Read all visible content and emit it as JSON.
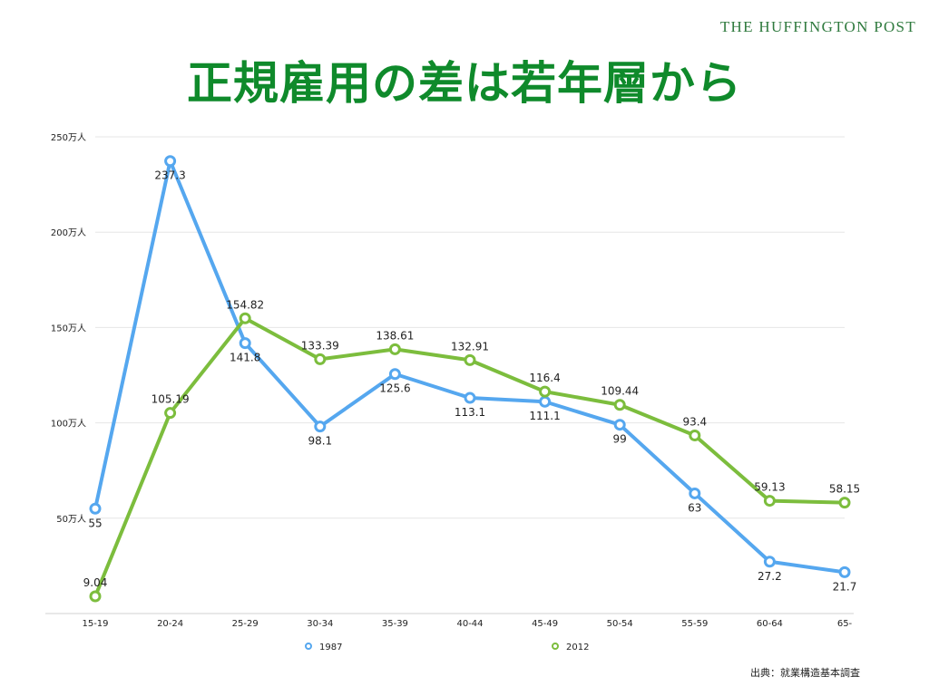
{
  "brand": "THE HUFFINGTON POST",
  "title": "正規雇用の差は若年層から",
  "source": "出典：就業構造基本調査",
  "colors": {
    "s1987": "#55a7ef",
    "s2012": "#7cbd3d",
    "grid": "#e6e6e6",
    "title": "#0f8a2b"
  },
  "chart_data": {
    "type": "line",
    "categories": [
      "15-19",
      "20-24",
      "25-29",
      "30-34",
      "35-39",
      "40-44",
      "45-49",
      "50-54",
      "55-59",
      "60-64",
      "65-"
    ],
    "ylim": [
      0,
      250
    ],
    "yticks": [
      {
        "value": 50,
        "label": "50万人"
      },
      {
        "value": 100,
        "label": "100万人"
      },
      {
        "value": 150,
        "label": "150万人"
      },
      {
        "value": 200,
        "label": "200万人"
      },
      {
        "value": 250,
        "label": "250万人"
      }
    ],
    "legend_position": "bottom",
    "series": [
      {
        "name": "1987",
        "values": [
          55,
          237.3,
          141.8,
          98.1,
          125.6,
          113.1,
          111.1,
          99,
          63,
          27.2,
          21.7
        ],
        "labels": [
          "55",
          "237.3",
          "141.8",
          "98.1",
          "125.6",
          "113.1",
          "111.1",
          "99",
          "63",
          "27.2",
          "21.7"
        ]
      },
      {
        "name": "2012",
        "values": [
          9.04,
          105.19,
          154.82,
          133.39,
          138.61,
          132.91,
          116.4,
          109.44,
          93.4,
          59.13,
          58.15
        ],
        "labels": [
          "9.04",
          "105.19",
          "154.82",
          "133.39",
          "138.61",
          "132.91",
          "116.4",
          "109.44",
          "93.4",
          "59.13",
          "58.15"
        ]
      }
    ]
  }
}
